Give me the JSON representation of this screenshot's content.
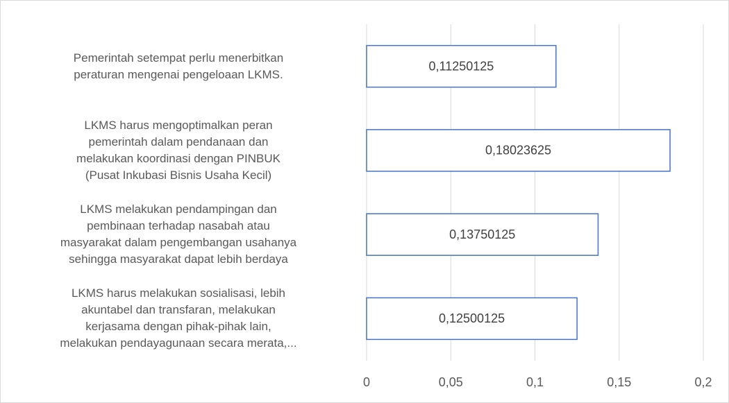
{
  "chart_data": {
    "type": "bar",
    "orientation": "horizontal",
    "categories": [
      "Pemerintah setempat perlu menerbitkan\nperaturan mengenai pengeloaan LKMS.",
      "LKMS harus mengoptimalkan peran\npemerintah dalam pendanaan dan\nmelakukan koordinasi dengan PINBUK\n(Pusat Inkubasi Bisnis Usaha Kecil)",
      "LKMS melakukan pendampingan dan\npembinaan terhadap nasabah atau\nmasyarakat dalam pengembangan usahanya\nsehingga masyarakat dapat lebih berdaya",
      "LKMS harus melakukan sosialisasi, lebih\nakuntabel dan transfaran, melakukan\nkerjasama dengan pihak-pihak lain,\nmelakukan pendayagunaan secara merata,..."
    ],
    "values": [
      0.11250125,
      0.18023625,
      0.13750125,
      0.12500125
    ],
    "value_labels": [
      "0,11250125",
      "0,18023625",
      "0,13750125",
      "0,12500125"
    ],
    "color": "#4472c4",
    "xlim": [
      0,
      0.2
    ],
    "xticks": [
      0,
      {
        "value": 0.05,
        "label": "0,05"
      },
      {
        "value": 0.1,
        "label": "0,1"
      },
      {
        "value": 0.15,
        "label": "0,15"
      },
      {
        "value": 0.2,
        "label": "0,2"
      }
    ],
    "grid": true
  }
}
